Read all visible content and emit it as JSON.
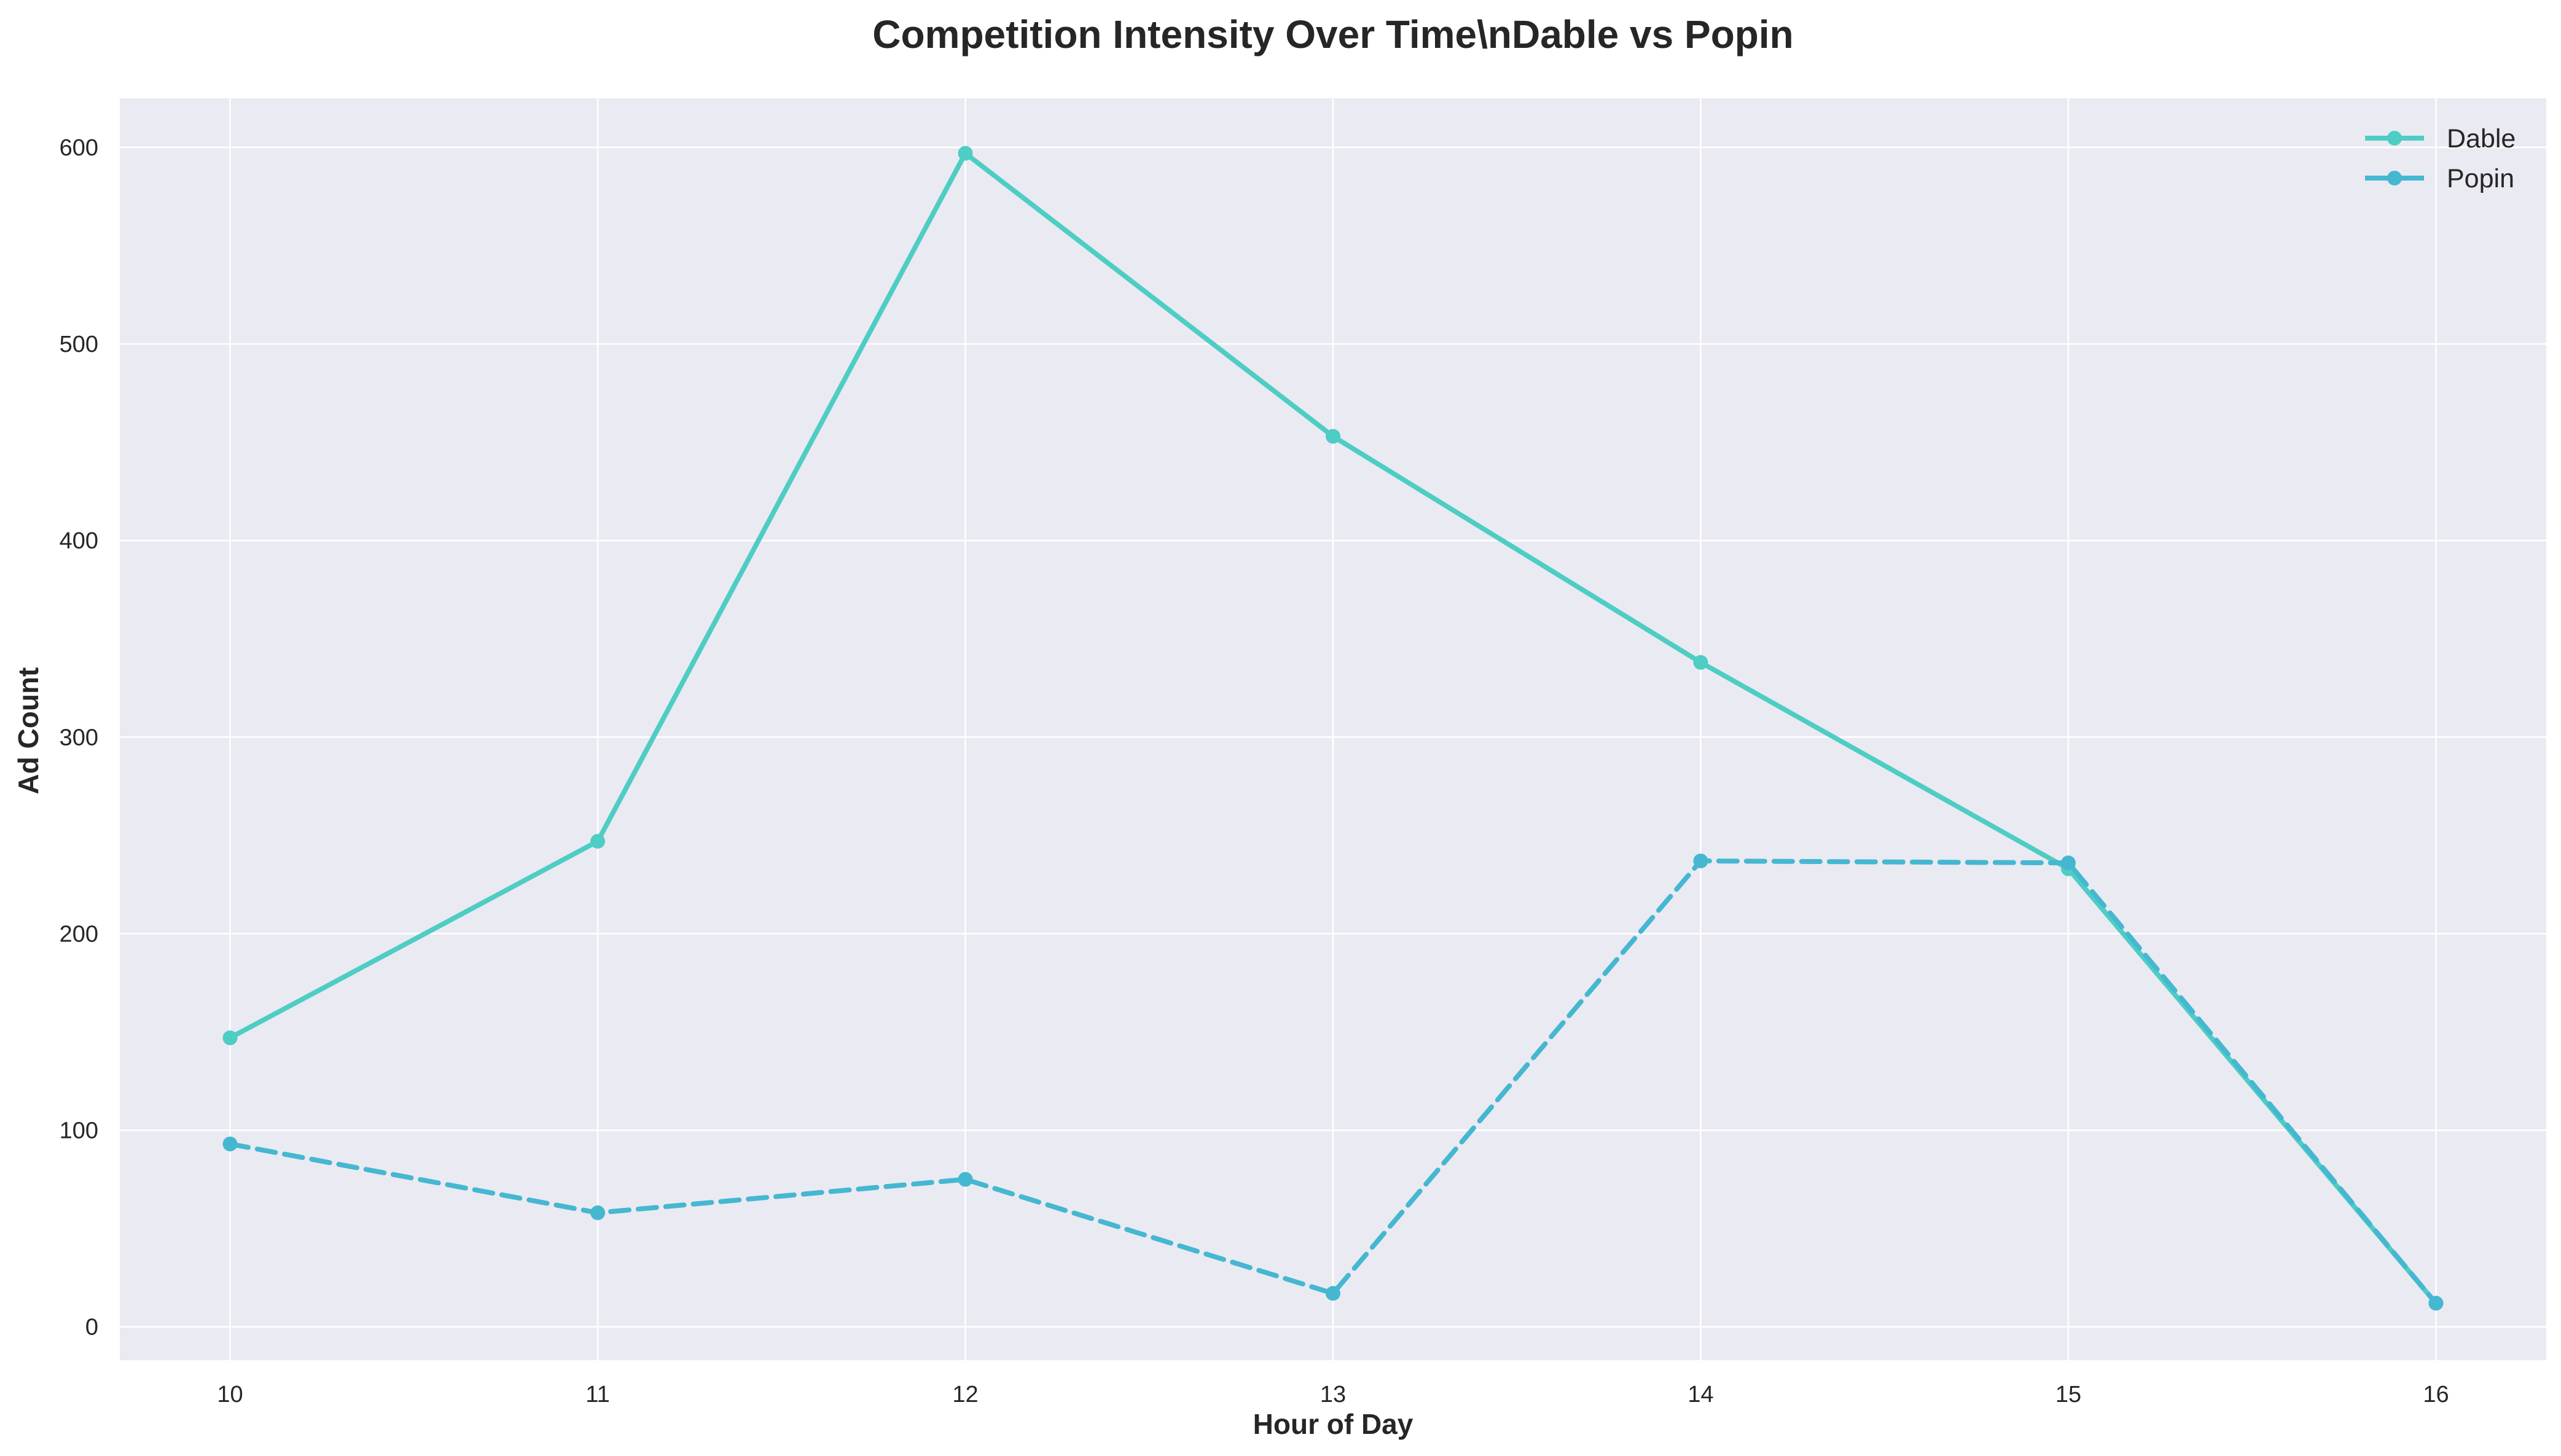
{
  "chart_data": {
    "type": "line",
    "title": "Competition Intensity Over Time\\nDable vs Popin",
    "xlabel": "Hour of Day",
    "ylabel": "Ad Count",
    "x": [
      10,
      11,
      12,
      13,
      14,
      15,
      16
    ],
    "xlim": [
      9.7,
      16.3
    ],
    "ylim": [
      -17,
      625
    ],
    "xticks": [
      "10",
      "11",
      "12",
      "13",
      "14",
      "15",
      "16"
    ],
    "yticks": [
      0,
      100,
      200,
      300,
      400,
      500,
      600
    ],
    "grid": true,
    "legend_position": "top-right",
    "series": [
      {
        "name": "Dable",
        "values": [
          147,
          247,
          597,
          453,
          338,
          233,
          12
        ],
        "color": "#4ecdc4",
        "dash": "solid"
      },
      {
        "name": "Popin",
        "values": [
          93,
          58,
          75,
          17,
          237,
          236,
          12
        ],
        "color": "#45b7d1",
        "dash": "dashed"
      }
    ],
    "colors": {
      "plot_background": "#eaeaf2",
      "grid": "#ffffff",
      "text": "#262626"
    }
  }
}
